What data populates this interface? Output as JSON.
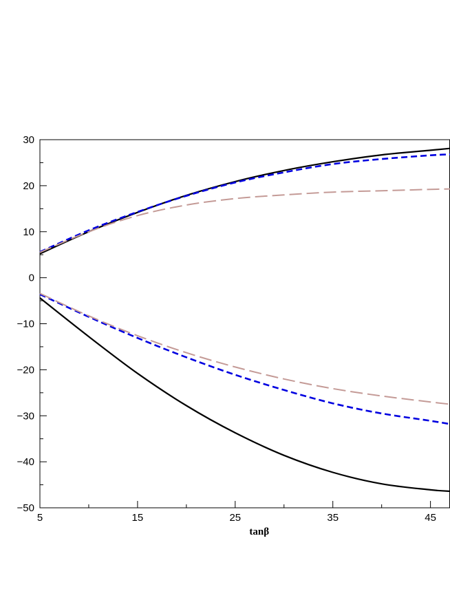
{
  "chart_data": {
    "type": "line",
    "title": "",
    "xlabel": "tanβ",
    "ylabel": "",
    "xlim": [
      5,
      47
    ],
    "ylim": [
      -50,
      30
    ],
    "grid": false,
    "xticks": [
      5,
      15,
      25,
      35,
      45
    ],
    "xtick_labels": [
      "5",
      "15",
      "25",
      "35",
      "45"
    ],
    "yticks": [
      -50,
      -40,
      -30,
      -20,
      -10,
      0,
      10,
      20,
      30
    ],
    "ytick_labels": [
      "−50",
      "−40",
      "−30",
      "−20",
      "−10",
      "0",
      "10",
      "20",
      "30"
    ],
    "series": [
      {
        "style": "solid",
        "color": "#000000",
        "x": [
          5,
          10,
          15,
          20,
          25,
          30,
          35,
          40,
          45,
          47
        ],
        "y": [
          5.2,
          10.0,
          14.2,
          17.9,
          20.9,
          23.3,
          25.2,
          26.7,
          27.7,
          28.1
        ]
      },
      {
        "style": "short-dash",
        "color": "#0000e0",
        "x": [
          5,
          10,
          15,
          20,
          25,
          30,
          35,
          40,
          45,
          47
        ],
        "y": [
          5.6,
          10.3,
          14.3,
          17.8,
          20.7,
          22.9,
          24.7,
          25.8,
          26.6,
          26.8
        ]
      },
      {
        "style": "long-dash",
        "color": "#c49a96",
        "x": [
          5,
          10,
          15,
          20,
          25,
          30,
          35,
          40,
          45,
          47
        ],
        "y": [
          5.5,
          10.0,
          13.5,
          15.8,
          17.2,
          18.0,
          18.6,
          18.9,
          19.2,
          19.3
        ]
      },
      {
        "style": "solid",
        "color": "#000000",
        "x": [
          5,
          10,
          15,
          20,
          25,
          30,
          35,
          40,
          45,
          47
        ],
        "y": [
          -4.4,
          -12.8,
          -20.8,
          -27.8,
          -33.7,
          -38.6,
          -42.3,
          -44.8,
          -46.1,
          -46.4
        ]
      },
      {
        "style": "short-dash",
        "color": "#0000e0",
        "x": [
          5,
          10,
          15,
          20,
          25,
          30,
          35,
          40,
          45,
          47
        ],
        "y": [
          -3.6,
          -8.5,
          -13.1,
          -17.3,
          -21.1,
          -24.4,
          -27.3,
          -29.5,
          -31.1,
          -31.8
        ]
      },
      {
        "style": "long-dash",
        "color": "#c49a96",
        "x": [
          5,
          10,
          15,
          20,
          25,
          30,
          35,
          40,
          45,
          47
        ],
        "y": [
          -3.4,
          -8.3,
          -12.6,
          -16.3,
          -19.4,
          -22.0,
          -24.1,
          -25.7,
          -27.0,
          -27.5
        ]
      }
    ]
  }
}
